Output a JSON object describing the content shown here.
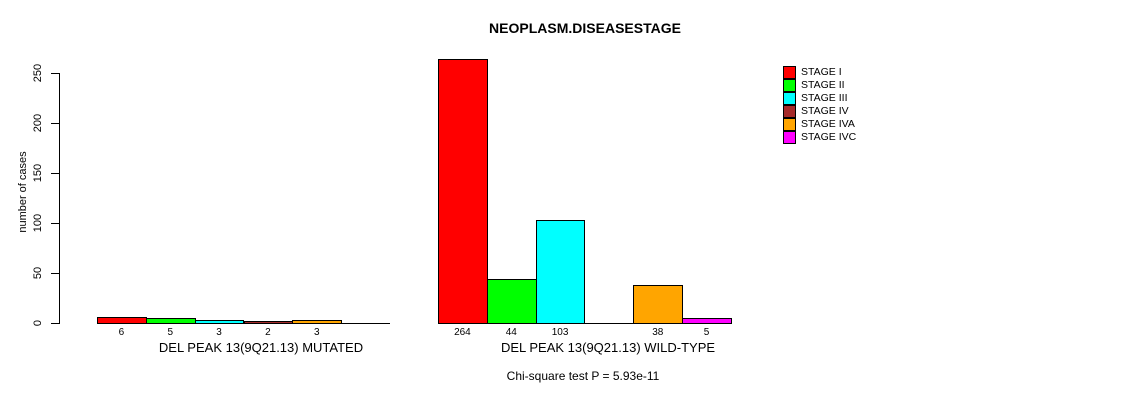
{
  "chart_data": {
    "type": "bar",
    "title": "NEOPLASM.DISEASESTAGE",
    "ylabel": "number of cases",
    "xlabel": "",
    "ylim": [
      0,
      250
    ],
    "yticks": [
      0,
      50,
      100,
      150,
      200,
      250
    ],
    "grid": false,
    "legend_position": "right",
    "categories": [
      "STAGE I",
      "STAGE II",
      "STAGE III",
      "STAGE IV",
      "STAGE IVA",
      "STAGE IVC"
    ],
    "legend": [
      {
        "label": "STAGE I",
        "color": "#ff0000"
      },
      {
        "label": "STAGE II",
        "color": "#00ff00"
      },
      {
        "label": "STAGE III",
        "color": "#00ffff"
      },
      {
        "label": "STAGE IV",
        "color": "#a52a2a"
      },
      {
        "label": "STAGE IVA",
        "color": "#ffa500"
      },
      {
        "label": "STAGE IVC",
        "color": "#ff00ff"
      }
    ],
    "groups": [
      {
        "label": "DEL PEAK 13(9Q21.13) MUTATED",
        "values": [
          6,
          5,
          3,
          2,
          3,
          0
        ]
      },
      {
        "label": "DEL PEAK 13(9Q21.13) WILD-TYPE",
        "values": [
          264,
          44,
          103,
          0,
          38,
          5
        ]
      }
    ],
    "annotation": "Chi-square test P = 5.93e-11"
  }
}
